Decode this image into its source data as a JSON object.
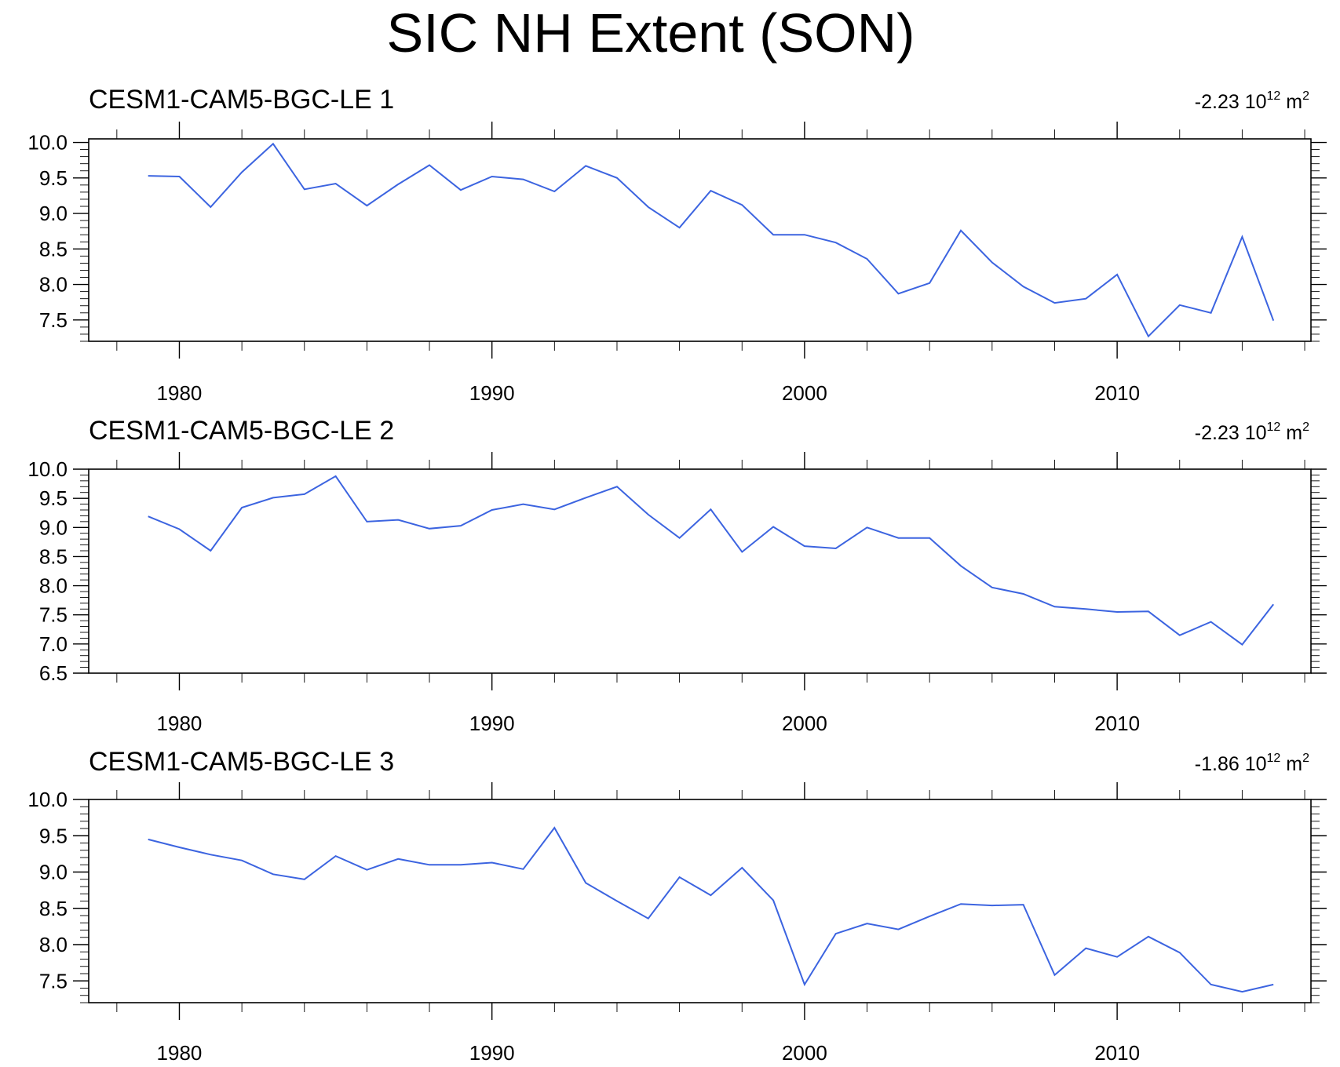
{
  "title": "SIC NH Extent (SON)",
  "line_color": "#3c64e0",
  "chart_data": [
    {
      "type": "line",
      "title": "CESM1-CAM5-BGC-LE 1",
      "trend_value": "-2.23",
      "trend_base": "10",
      "trend_exp": "12",
      "trend_unit": "m",
      "trend_unit_exp": "2",
      "xlim": [
        1977.1,
        2016.2
      ],
      "ylim": [
        7.2,
        10.05
      ],
      "yticks": [
        7.5,
        8.0,
        8.5,
        9.0,
        9.5,
        10.0
      ],
      "ytick_labels": [
        "7.5",
        "8.0",
        "8.5",
        "9.0",
        "9.5",
        "10.0"
      ],
      "xticks": [
        1980,
        1990,
        2000,
        2010
      ],
      "xtick_labels": [
        "1980",
        "1990",
        "2000",
        "2010"
      ],
      "grid": false,
      "x": [
        1979,
        1980,
        1981,
        1982,
        1983,
        1984,
        1985,
        1986,
        1987,
        1988,
        1989,
        1990,
        1991,
        1992,
        1993,
        1994,
        1995,
        1996,
        1997,
        1998,
        1999,
        2000,
        2001,
        2002,
        2003,
        2004,
        2005,
        2006,
        2007,
        2008,
        2009,
        2010,
        2011,
        2012,
        2013,
        2014,
        2015
      ],
      "values": [
        9.53,
        9.52,
        9.09,
        9.58,
        9.98,
        9.34,
        9.42,
        9.11,
        9.41,
        9.68,
        9.33,
        9.52,
        9.48,
        9.31,
        9.67,
        9.5,
        9.09,
        8.8,
        9.32,
        9.12,
        8.7,
        8.7,
        8.59,
        8.36,
        7.87,
        8.02,
        8.76,
        8.31,
        7.97,
        7.74,
        7.8,
        8.14,
        7.27,
        7.71,
        7.6,
        8.67,
        7.49
      ]
    },
    {
      "type": "line",
      "title": "CESM1-CAM5-BGC-LE 2",
      "trend_value": "-2.23",
      "trend_base": "10",
      "trend_exp": "12",
      "trend_unit": "m",
      "trend_unit_exp": "2",
      "xlim": [
        1977.1,
        2016.2
      ],
      "ylim": [
        6.5,
        10.0
      ],
      "yticks": [
        6.5,
        7.0,
        7.5,
        8.0,
        8.5,
        9.0,
        9.5,
        10.0
      ],
      "ytick_labels": [
        "6.5",
        "7.0",
        "7.5",
        "8.0",
        "8.5",
        "9.0",
        "9.5",
        "10.0"
      ],
      "xticks": [
        1980,
        1990,
        2000,
        2010
      ],
      "xtick_labels": [
        "1980",
        "1990",
        "2000",
        "2010"
      ],
      "grid": false,
      "x": [
        1979,
        1980,
        1981,
        1982,
        1983,
        1984,
        1985,
        1986,
        1987,
        1988,
        1989,
        1990,
        1991,
        1992,
        1993,
        1994,
        1995,
        1996,
        1997,
        1998,
        1999,
        2000,
        2001,
        2002,
        2003,
        2004,
        2005,
        2006,
        2007,
        2008,
        2009,
        2010,
        2011,
        2012,
        2013,
        2014,
        2015
      ],
      "values": [
        9.19,
        8.97,
        8.6,
        9.34,
        9.51,
        9.57,
        9.88,
        9.1,
        9.13,
        8.98,
        9.03,
        9.3,
        9.4,
        9.31,
        9.51,
        9.7,
        9.22,
        8.82,
        9.31,
        8.58,
        9.01,
        8.68,
        8.64,
        9.0,
        8.82,
        8.82,
        8.34,
        7.97,
        7.86,
        7.64,
        7.6,
        7.55,
        7.56,
        7.15,
        7.38,
        6.99,
        7.68
      ]
    },
    {
      "type": "line",
      "title": "CESM1-CAM5-BGC-LE 3",
      "trend_value": "-1.86",
      "trend_base": "10",
      "trend_exp": "12",
      "trend_unit": "m",
      "trend_unit_exp": "2",
      "xlim": [
        1977.1,
        2016.2
      ],
      "ylim": [
        7.2,
        10.0
      ],
      "yticks": [
        7.5,
        8.0,
        8.5,
        9.0,
        9.5,
        10.0
      ],
      "ytick_labels": [
        "7.5",
        "8.0",
        "8.5",
        "9.0",
        "9.5",
        "10.0"
      ],
      "xticks": [
        1980,
        1990,
        2000,
        2010
      ],
      "xtick_labels": [
        "1980",
        "1990",
        "2000",
        "2010"
      ],
      "grid": false,
      "x": [
        1979,
        1980,
        1981,
        1982,
        1983,
        1984,
        1985,
        1986,
        1987,
        1988,
        1989,
        1990,
        1991,
        1992,
        1993,
        1994,
        1995,
        1996,
        1997,
        1998,
        1999,
        2000,
        2001,
        2002,
        2003,
        2004,
        2005,
        2006,
        2007,
        2008,
        2009,
        2010,
        2011,
        2012,
        2013,
        2014,
        2015
      ],
      "values": [
        9.45,
        9.34,
        9.24,
        9.16,
        8.97,
        8.9,
        9.22,
        9.03,
        9.18,
        9.1,
        9.1,
        9.13,
        9.04,
        9.61,
        8.85,
        8.6,
        8.36,
        8.93,
        8.68,
        9.06,
        8.61,
        7.45,
        8.15,
        8.29,
        8.21,
        8.39,
        8.56,
        8.54,
        8.55,
        7.58,
        7.95,
        7.83,
        8.11,
        7.89,
        7.45,
        7.35,
        7.45
      ]
    }
  ]
}
